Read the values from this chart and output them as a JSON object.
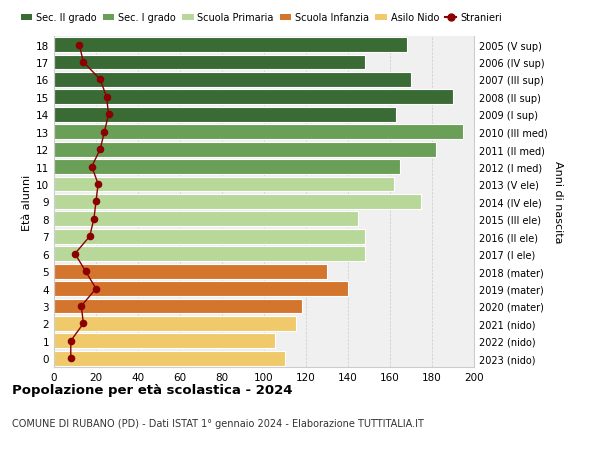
{
  "ages": [
    0,
    1,
    2,
    3,
    4,
    5,
    6,
    7,
    8,
    9,
    10,
    11,
    12,
    13,
    14,
    15,
    16,
    17,
    18
  ],
  "bar_values": [
    110,
    105,
    115,
    118,
    140,
    130,
    148,
    148,
    145,
    175,
    162,
    165,
    182,
    195,
    163,
    190,
    170,
    148,
    168
  ],
  "stranieri": [
    8,
    8,
    14,
    13,
    20,
    15,
    10,
    17,
    19,
    20,
    21,
    18,
    22,
    24,
    26,
    25,
    22,
    14,
    12
  ],
  "right_labels": [
    "2023 (nido)",
    "2022 (nido)",
    "2021 (nido)",
    "2020 (mater)",
    "2019 (mater)",
    "2018 (mater)",
    "2017 (I ele)",
    "2016 (II ele)",
    "2015 (III ele)",
    "2014 (IV ele)",
    "2013 (V ele)",
    "2012 (I med)",
    "2011 (II med)",
    "2010 (III med)",
    "2009 (I sup)",
    "2008 (II sup)",
    "2007 (III sup)",
    "2006 (IV sup)",
    "2005 (V sup)"
  ],
  "colors": {
    "sec2": "#3a6b35",
    "sec1": "#6a9f57",
    "primaria": "#b8d89a",
    "infanzia": "#d4752e",
    "nido": "#f0c96a"
  },
  "bar_colors": [
    "#f0c96a",
    "#f0c96a",
    "#f0c96a",
    "#d4752e",
    "#d4752e",
    "#d4752e",
    "#b8d89a",
    "#b8d89a",
    "#b8d89a",
    "#b8d89a",
    "#b8d89a",
    "#6a9f57",
    "#6a9f57",
    "#6a9f57",
    "#3a6b35",
    "#3a6b35",
    "#3a6b35",
    "#3a6b35",
    "#3a6b35"
  ],
  "stranieri_color": "#8b0000",
  "bg_color": "#f0f0f0",
  "grid_color": "#cccccc",
  "title": "Popolazione per età scolastica - 2024",
  "subtitle": "COMUNE DI RUBANO (PD) - Dati ISTAT 1° gennaio 2024 - Elaborazione TUTTITALIA.IT",
  "xlabel_left": "Età alunni",
  "xlabel_right": "Anni di nascita",
  "xlim": [
    0,
    200
  ],
  "xticks": [
    0,
    20,
    40,
    60,
    80,
    100,
    120,
    140,
    160,
    180,
    200
  ]
}
